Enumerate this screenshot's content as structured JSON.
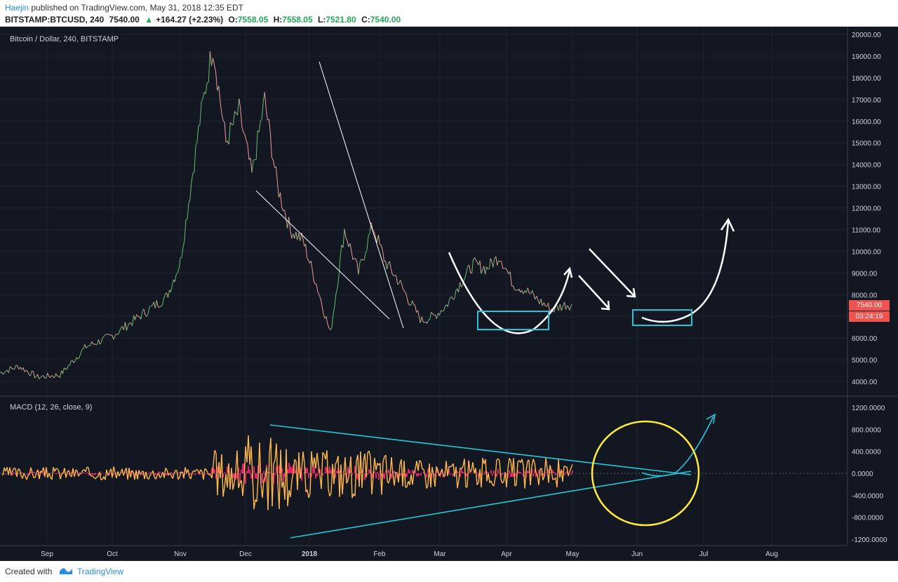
{
  "header": {
    "publisher": "Haejin",
    "published_text": "published on TradingView.com, May 31, 2018 12:35 EDT",
    "symbol": "BITSTAMP:BTCUSD, 240",
    "last": "7540.00",
    "change": "+164.27 (+2.23%)",
    "o_label": "O:",
    "o_value": "7558.05",
    "h_label": "H:",
    "h_value": "7558.05",
    "l_label": "L:",
    "l_value": "7521.80",
    "c_label": "C:",
    "c_value": "7540.00"
  },
  "footer": {
    "created_with": "Created with",
    "brand": "TradingView"
  },
  "chart_data": [
    {
      "type": "line",
      "title": "Bitcoin / Dollar, 240, BITSTAMP",
      "price_label": "7540.00",
      "countdown_label": "03:24:19",
      "x_ticks": [
        "Sep",
        "Oct",
        "Nov",
        "Dec",
        "2018",
        "Feb",
        "Mar",
        "Apr",
        "May",
        "Jun",
        "Jul",
        "Aug"
      ],
      "y_ticks": [
        "20000.00",
        "19000.00",
        "18000.00",
        "17000.00",
        "16000.00",
        "15000.00",
        "14000.00",
        "13000.00",
        "12000.00",
        "11000.00",
        "10000.00",
        "9000.00",
        "8000.00",
        "7000.00",
        "6000.00",
        "5000.00",
        "4000.00"
      ],
      "ylim": [
        3500,
        20200
      ],
      "series": [
        {
          "values_x_month": [
            0,
            0.4,
            0.8,
            1.2,
            1.6,
            2.0,
            2.4,
            2.8,
            3.0,
            3.3,
            3.5,
            3.7,
            3.9,
            4.1,
            4.3,
            4.5,
            4.7,
            4.9,
            5.1,
            5.3,
            5.5,
            5.7,
            5.9,
            6.1,
            6.3,
            6.5,
            6.7,
            6.9,
            7.1,
            7.3,
            7.5,
            7.7,
            7.9,
            8.1,
            8.3,
            8.5,
            8.7,
            8.9,
            9.0
          ],
          "values": [
            4400,
            4700,
            4200,
            4300,
            5600,
            6100,
            7000,
            7900,
            9500,
            16000,
            19500,
            15000,
            16500,
            13500,
            17000,
            13000,
            11000,
            10500,
            8500,
            6200,
            11000,
            9000,
            11200,
            9500,
            8700,
            7700,
            6800,
            7000,
            7500,
            8500,
            9400,
            9200,
            9800,
            8500,
            8200,
            7700,
            7300,
            7550,
            7540
          ]
        }
      ]
    },
    {
      "type": "line",
      "title": "MACD (12, 26, close, 9)",
      "y_ticks": [
        "1200.0000",
        "800.0000",
        "400.0000",
        "0.0000",
        "-400.0000",
        "-800.0000",
        "-1200.0000"
      ],
      "ylim": [
        -1300,
        1300
      ]
    }
  ]
}
